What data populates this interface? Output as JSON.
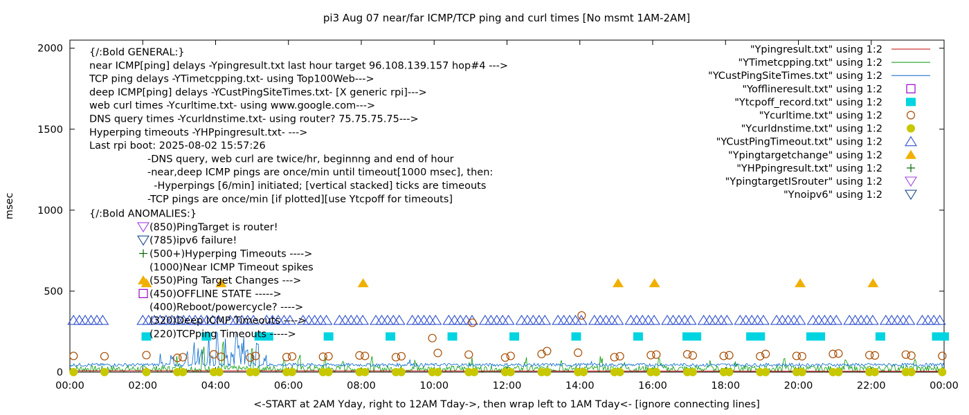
{
  "chart_data": {
    "type": "scatter",
    "title": "pi3 Aug 07  near/far ICMP/TCP ping and curl times [No msmt 1AM-2AM]",
    "xlabel": "<-START at 2AM Yday, right to 12AM Tday->, then wrap left to 1AM Tday<- [ignore connecting lines]",
    "ylabel": "msec",
    "xlim": [
      0,
      24
    ],
    "ylim": [
      0,
      2050
    ],
    "x_ticks": [
      "00:00",
      "02:00",
      "04:00",
      "06:00",
      "08:00",
      "10:00",
      "12:00",
      "14:00",
      "16:00",
      "18:00",
      "20:00",
      "22:00",
      "00:00"
    ],
    "y_ticks": [
      "0",
      "500",
      "1000",
      "1500",
      "2000"
    ],
    "y_tick_values": [
      0,
      500,
      1000,
      1500,
      2000
    ],
    "legend_position": "top-right",
    "colors": {
      "ping": "#c00000",
      "tcp": "#009900",
      "custping": "#0066cc",
      "offline": "#9900cc",
      "tcpoff": "#00d4e0",
      "curl": "#a64b00",
      "dns": "#c8c800",
      "custtimeout": "#3050d0",
      "targetchange": "#f0b000",
      "hpping": "#006400",
      "isrouter": "#a040e0",
      "noipv6": "#1a4c8c"
    },
    "legend": [
      {
        "label": "\"Ypingresult.txt\" using 1:2",
        "key": "ping",
        "symbol": "line"
      },
      {
        "label": "\"YTimetcpping.txt\" using 1:2",
        "key": "tcp",
        "symbol": "line"
      },
      {
        "label": "\"YCustPingSiteTimes.txt\" using 1:2",
        "key": "custping",
        "symbol": "line"
      },
      {
        "label": "\"Yofflineresult.txt\" using 1:2",
        "key": "offline",
        "symbol": "open-square"
      },
      {
        "label": "\"Ytcpoff_record.txt\" using 1:2",
        "key": "tcpoff",
        "symbol": "filled-square"
      },
      {
        "label": "\"Ycurltime.txt\" using 1:2",
        "key": "curl",
        "symbol": "open-circle"
      },
      {
        "label": "\"Ycurldnstime.txt\" using 1:2",
        "key": "dns",
        "symbol": "filled-circle"
      },
      {
        "label": "\"YCustPingTimeout.txt\" using 1:2",
        "key": "custtimeout",
        "symbol": "open-triangle"
      },
      {
        "label": "\"Ypingtargetchange\" using 1:2",
        "key": "targetchange",
        "symbol": "filled-triangle"
      },
      {
        "label": "\"YHPpingresult.txt\" using 1:2",
        "key": "hpping",
        "symbol": "plus"
      },
      {
        "label": "\"YpingtargetISrouter\" using 1:2",
        "key": "isrouter",
        "symbol": "open-down-triangle"
      },
      {
        "label": "\"Ynoipv6\" using 1:2",
        "key": "noipv6",
        "symbol": "open-down-triangle"
      }
    ],
    "notes_general": [
      "{/:Bold GENERAL:}",
      "near ICMP[ping] delays -Ypingresult.txt last hour target 96.108.139.157 hop#4 --->",
      "TCP ping delays -YTimetcpping.txt- using Top100Web--->",
      "deep ICMP[ping] delays -YCustPingSiteTimes.txt- [X generic rpi]--->",
      "web curl times -Ycurltime.txt- using www.google.com--->",
      "DNS query times -Ycurldnstime.txt- using router? 75.75.75.75--->",
      "Hyperping timeouts -YHPpingresult.txt- --->",
      "Last rpi boot: 2025-08-02 15:57:26"
    ],
    "notes_indented": [
      "-DNS query, web curl are twice/hr, beginnng and end of hour",
      "-near,deep ICMP pings are once/min until timeout[1000 msec], then:",
      "  -Hyperpings [6/min] initiated; [vertical stacked] ticks are timeouts",
      "-TCP pings are once/min [if plotted][use Ytcpoff for timeouts]"
    ],
    "anomalies_title": "{/:Bold ANOMALIES:}",
    "anomalies": [
      {
        "text": "(850)PingTarget is router!",
        "symbol": "open-down-triangle",
        "key": "isrouter"
      },
      {
        "text": "(785)ipv6 failure!",
        "symbol": "open-down-triangle",
        "key": "noipv6"
      },
      {
        "text": "(500+)Hyperping Timeouts ---->",
        "symbol": "plus",
        "key": "hpping"
      },
      {
        "text": "(1000)Near ICMP Timeout spikes",
        "symbol": "none",
        "key": "ping"
      },
      {
        "text": "(550)Ping Target Changes --->",
        "symbol": "filled-triangle",
        "key": "targetchange"
      },
      {
        "text": "(450)OFFLINE STATE ----->",
        "symbol": "open-square",
        "key": "offline"
      },
      {
        "text": "(400)Reboot/powercycle? ---->",
        "symbol": "none",
        "key": "curl"
      },
      {
        "text": "(320)Deep ICMP Timeouts ---->",
        "symbol": "none",
        "key": "custtimeout"
      },
      {
        "text": "(220)TCPping Timeouts ----->",
        "symbol": "none",
        "key": "tcpoff"
      }
    ],
    "series": {
      "targetchange": {
        "y": 550,
        "x": [
          2.1,
          4.15,
          8.05,
          15.05,
          16.05,
          20.05,
          22.05
        ]
      },
      "custtimeout": {
        "y": 320,
        "segments": [
          [
            0.1,
            0.9
          ],
          [
            2.0,
            4.1
          ],
          [
            4.4,
            5.1
          ],
          [
            5.4,
            6.1
          ],
          [
            6.4,
            7.1
          ],
          [
            7.4,
            8.1
          ],
          [
            8.4,
            9.1
          ],
          [
            9.4,
            10.1
          ],
          [
            10.4,
            11.1
          ],
          [
            11.4,
            12.1
          ],
          [
            12.4,
            13.1
          ],
          [
            13.4,
            14.1
          ],
          [
            14.4,
            15.1
          ],
          [
            15.4,
            16.1
          ],
          [
            16.4,
            17.1
          ],
          [
            17.4,
            18.1
          ],
          [
            18.4,
            19.1
          ],
          [
            19.4,
            20.1
          ],
          [
            20.4,
            21.1
          ],
          [
            21.4,
            22.1
          ],
          [
            22.4,
            23.1
          ],
          [
            23.4,
            24.0
          ]
        ]
      },
      "tcpoff": {
        "y": 220,
        "x": [
          2.1,
          3.75,
          5.2,
          5.45,
          7.1,
          8.8,
          10.5,
          12.2,
          13.9,
          15.6,
          16.95,
          17.2,
          18.7,
          18.95,
          20.35,
          20.6,
          22.25,
          23.8,
          24.0
        ]
      },
      "curl": {
        "points": [
          [
            0.1,
            100
          ],
          [
            0.95,
            98
          ],
          [
            2.1,
            105
          ],
          [
            2.95,
            88
          ],
          [
            3.1,
            92
          ],
          [
            3.95,
            110
          ],
          [
            4.15,
            95
          ],
          [
            4.95,
            90
          ],
          [
            5.1,
            100
          ],
          [
            5.95,
            93
          ],
          [
            6.1,
            97
          ],
          [
            6.95,
            95
          ],
          [
            7.1,
            98
          ],
          [
            7.95,
            103
          ],
          [
            8.1,
            100
          ],
          [
            8.95,
            92
          ],
          [
            9.1,
            98
          ],
          [
            9.95,
            210
          ],
          [
            10.1,
            118
          ],
          [
            10.95,
            108
          ],
          [
            11.05,
            305
          ],
          [
            11.95,
            90
          ],
          [
            12.1,
            100
          ],
          [
            12.95,
            112
          ],
          [
            13.1,
            130
          ],
          [
            13.95,
            120
          ],
          [
            14.05,
            350
          ],
          [
            14.95,
            92
          ],
          [
            15.1,
            98
          ],
          [
            15.95,
            105
          ],
          [
            16.1,
            108
          ],
          [
            16.95,
            110
          ],
          [
            17.1,
            103
          ],
          [
            17.95,
            100
          ],
          [
            18.1,
            104
          ],
          [
            18.95,
            98
          ],
          [
            19.1,
            112
          ],
          [
            19.95,
            100
          ],
          [
            20.1,
            98
          ],
          [
            20.95,
            112
          ],
          [
            21.1,
            115
          ],
          [
            21.95,
            105
          ],
          [
            22.1,
            103
          ],
          [
            22.95,
            108
          ],
          [
            23.1,
            102
          ],
          [
            23.95,
            100
          ]
        ]
      },
      "dns": {
        "y": 0,
        "x": [
          0.1,
          0.95,
          2.1,
          2.95,
          3.1,
          3.95,
          4.1,
          4.95,
          5.1,
          5.95,
          6.1,
          6.95,
          7.1,
          7.95,
          8.1,
          8.95,
          9.1,
          9.95,
          10.1,
          10.95,
          11.1,
          11.95,
          12.1,
          12.95,
          13.1,
          13.95,
          14.1,
          14.95,
          15.1,
          15.95,
          16.1,
          16.95,
          17.1,
          17.95,
          18.1,
          18.95,
          19.1,
          19.95,
          20.1,
          20.95,
          21.1,
          21.95,
          22.1,
          22.95,
          23.1,
          23.95
        ]
      },
      "ping_baseline": {
        "points": [
          [
            0.0,
            8
          ],
          [
            2.0,
            8
          ],
          [
            24.0,
            8
          ]
        ]
      },
      "tcp_baseline": {
        "points": [
          [
            0.0,
            12
          ],
          [
            24.0,
            12
          ]
        ]
      },
      "custping_baseline": {
        "points": [
          [
            0.0,
            45
          ],
          [
            24.0,
            45
          ]
        ]
      },
      "custping_spikes": {
        "points": [
          [
            2.5,
            130
          ],
          [
            2.8,
            110
          ],
          [
            3.2,
            170
          ],
          [
            3.4,
            200
          ],
          [
            3.5,
            150
          ],
          [
            3.6,
            180
          ],
          [
            3.8,
            240
          ],
          [
            3.9,
            190
          ],
          [
            4.05,
            250
          ],
          [
            4.3,
            210
          ],
          [
            4.45,
            230
          ],
          [
            4.55,
            290
          ],
          [
            4.65,
            240
          ],
          [
            4.75,
            270
          ],
          [
            4.85,
            210
          ],
          [
            5.0,
            140
          ],
          [
            5.15,
            180
          ],
          [
            5.35,
            150
          ],
          [
            6.2,
            90
          ],
          [
            9.3,
            100
          ],
          [
            14.3,
            80
          ]
        ]
      },
      "tcp_spikes": {
        "points": [
          [
            2.95,
            110
          ],
          [
            3.65,
            190
          ],
          [
            4.2,
            200
          ],
          [
            5.0,
            180
          ],
          [
            5.9,
            95
          ],
          [
            6.3,
            110
          ],
          [
            7.0,
            130
          ],
          [
            7.5,
            110
          ],
          [
            8.3,
            100
          ],
          [
            9.5,
            80
          ],
          [
            11.0,
            90
          ],
          [
            12.5,
            95
          ],
          [
            13.5,
            90
          ],
          [
            14.6,
            100
          ],
          [
            15.2,
            90
          ],
          [
            16.2,
            95
          ],
          [
            17.6,
            80
          ],
          [
            18.3,
            85
          ],
          [
            19.6,
            100
          ],
          [
            21.3,
            80
          ],
          [
            22.6,
            90
          ],
          [
            23.2,
            85
          ]
        ]
      }
    }
  }
}
